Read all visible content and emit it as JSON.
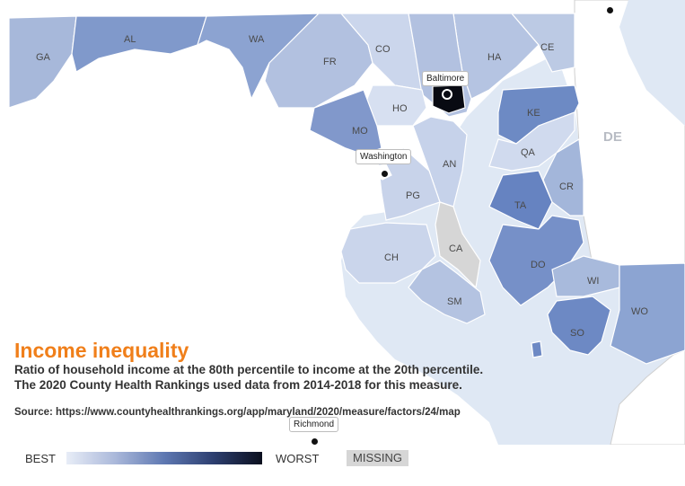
{
  "map": {
    "counties": [
      {
        "id": "GA",
        "label": "GA",
        "color": "#a7b8da"
      },
      {
        "id": "AL",
        "label": "AL",
        "color": "#8099cb"
      },
      {
        "id": "WA",
        "label": "WA",
        "color": "#8ca3d1"
      },
      {
        "id": "FR",
        "label": "FR",
        "color": "#b2c1e0"
      },
      {
        "id": "CO",
        "label": "CO",
        "color": "#cbd6ec"
      },
      {
        "id": "HA",
        "label": "HA",
        "color": "#b5c4e2"
      },
      {
        "id": "CE",
        "label": "CE",
        "color": "#bccae4"
      },
      {
        "id": "BALT",
        "label": "",
        "color": "#b2c1e0"
      },
      {
        "id": "HO",
        "label": "HO",
        "color": "#d7e0f1"
      },
      {
        "id": "MO",
        "label": "MO",
        "color": "#8198cb"
      },
      {
        "id": "AN",
        "label": "AN",
        "color": "#c6d2ea"
      },
      {
        "id": "KE",
        "label": "KE",
        "color": "#6d8ac4"
      },
      {
        "id": "QA",
        "label": "QA",
        "color": "#d0daee"
      },
      {
        "id": "PG",
        "label": "PG",
        "color": "#c8d3ea"
      },
      {
        "id": "CR",
        "label": "CR",
        "color": "#a3b6da"
      },
      {
        "id": "TA",
        "label": "TA",
        "color": "#6683c1"
      },
      {
        "id": "CA",
        "label": "CA",
        "color": "#d6d6d6"
      },
      {
        "id": "CH",
        "label": "CH",
        "color": "#cad5eb"
      },
      {
        "id": "DO",
        "label": "DO",
        "color": "#7690c8"
      },
      {
        "id": "SM",
        "label": "SM",
        "color": "#b4c3e1"
      },
      {
        "id": "WI",
        "label": "WI",
        "color": "#a8badc"
      },
      {
        "id": "WO",
        "label": "WO",
        "color": "#8ca4d2"
      },
      {
        "id": "SO",
        "label": "SO",
        "color": "#6d89c4"
      },
      {
        "id": "SOMER2",
        "label": "",
        "color": "#6d89c4"
      },
      {
        "id": "BAL_CITY",
        "label": "",
        "color": "#080a12"
      },
      {
        "id": "DC",
        "label": "",
        "color": "#ffffff"
      }
    ],
    "water_color": "#dfe8f4",
    "state_label": "DE",
    "cities": {
      "baltimore": "Baltimore",
      "washington": "Washington",
      "richmond": "Richmond"
    }
  },
  "title": "Income inequality",
  "subtitle_line1": "Ratio of household income at the 80th percentile to income at the 20th percentile.",
  "subtitle_line2": "The 2020 County Health Rankings used data from 2014-2018 for this measure.",
  "source": "Source: https://www.countyhealthrankings.org/app/maryland/2020/measure/factors/24/map",
  "legend": {
    "best": "BEST",
    "worst": "WORST",
    "missing": "MISSING",
    "gradient": [
      "#e8edf7",
      "#0b0f1e"
    ]
  }
}
